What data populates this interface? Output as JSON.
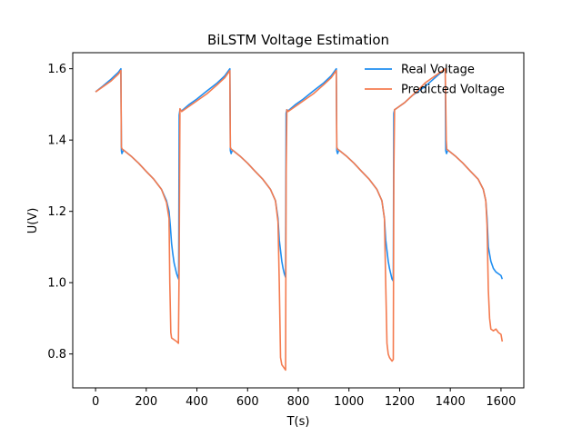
{
  "chart_data": {
    "type": "line",
    "title": "BiLSTM Voltage Estimation",
    "xlabel": "T(s)",
    "ylabel": "U(V)",
    "xlim": [
      -90,
      1690
    ],
    "ylim": [
      0.705,
      1.645
    ],
    "xticks": [
      0,
      200,
      400,
      600,
      800,
      1000,
      1200,
      1400,
      1600
    ],
    "xtick_labels": [
      "0",
      "200",
      "400",
      "600",
      "800",
      "1000",
      "1200",
      "1400",
      "1600"
    ],
    "yticks": [
      0.8,
      1.0,
      1.2,
      1.4,
      1.6
    ],
    "ytick_labels": [
      "0.8",
      "1.0",
      "1.2",
      "1.4",
      "1.6"
    ],
    "grid": false,
    "legend": "top-right",
    "series": [
      {
        "name": "Real Voltage",
        "color": "#1f8ef1",
        "points": [
          [
            0,
            1.535
          ],
          [
            30,
            1.552
          ],
          [
            60,
            1.57
          ],
          [
            90,
            1.59
          ],
          [
            100,
            1.6
          ],
          [
            102,
            1.37
          ],
          [
            104,
            1.362
          ],
          [
            110,
            1.372
          ],
          [
            140,
            1.355
          ],
          [
            170,
            1.335
          ],
          [
            200,
            1.312
          ],
          [
            230,
            1.29
          ],
          [
            260,
            1.262
          ],
          [
            280,
            1.23
          ],
          [
            290,
            1.2
          ],
          [
            295,
            1.16
          ],
          [
            300,
            1.11
          ],
          [
            305,
            1.08
          ],
          [
            310,
            1.055
          ],
          [
            315,
            1.04
          ],
          [
            320,
            1.025
          ],
          [
            325,
            1.015
          ],
          [
            328,
            1.01
          ],
          [
            330,
            1.47
          ],
          [
            333,
            1.485
          ],
          [
            340,
            1.482
          ],
          [
            370,
            1.5
          ],
          [
            400,
            1.515
          ],
          [
            440,
            1.538
          ],
          [
            480,
            1.56
          ],
          [
            510,
            1.58
          ],
          [
            530,
            1.6
          ],
          [
            532,
            1.37
          ],
          [
            535,
            1.362
          ],
          [
            540,
            1.372
          ],
          [
            570,
            1.355
          ],
          [
            600,
            1.335
          ],
          [
            630,
            1.312
          ],
          [
            660,
            1.29
          ],
          [
            690,
            1.262
          ],
          [
            710,
            1.23
          ],
          [
            720,
            1.18
          ],
          [
            725,
            1.12
          ],
          [
            730,
            1.09
          ],
          [
            735,
            1.06
          ],
          [
            740,
            1.04
          ],
          [
            745,
            1.025
          ],
          [
            750,
            1.015
          ],
          [
            752,
            1.475
          ],
          [
            755,
            1.485
          ],
          [
            760,
            1.482
          ],
          [
            790,
            1.5
          ],
          [
            820,
            1.515
          ],
          [
            860,
            1.538
          ],
          [
            900,
            1.56
          ],
          [
            930,
            1.58
          ],
          [
            950,
            1.6
          ],
          [
            952,
            1.37
          ],
          [
            955,
            1.362
          ],
          [
            960,
            1.372
          ],
          [
            990,
            1.355
          ],
          [
            1020,
            1.335
          ],
          [
            1050,
            1.312
          ],
          [
            1080,
            1.29
          ],
          [
            1110,
            1.262
          ],
          [
            1130,
            1.23
          ],
          [
            1140,
            1.18
          ],
          [
            1145,
            1.12
          ],
          [
            1150,
            1.09
          ],
          [
            1155,
            1.06
          ],
          [
            1160,
            1.04
          ],
          [
            1165,
            1.025
          ],
          [
            1170,
            1.01
          ],
          [
            1175,
            1.005
          ],
          [
            1177,
            1.475
          ],
          [
            1180,
            1.485
          ],
          [
            1190,
            1.49
          ],
          [
            1220,
            1.505
          ],
          [
            1250,
            1.525
          ],
          [
            1280,
            1.54
          ],
          [
            1300,
            1.55
          ],
          [
            1380,
            1.6
          ],
          [
            1382,
            1.37
          ],
          [
            1385,
            1.362
          ],
          [
            1390,
            1.372
          ],
          [
            1420,
            1.355
          ],
          [
            1450,
            1.335
          ],
          [
            1480,
            1.312
          ],
          [
            1510,
            1.29
          ],
          [
            1530,
            1.262
          ],
          [
            1540,
            1.23
          ],
          [
            1545,
            1.18
          ],
          [
            1550,
            1.1
          ],
          [
            1560,
            1.06
          ],
          [
            1570,
            1.04
          ],
          [
            1580,
            1.03
          ],
          [
            1590,
            1.025
          ],
          [
            1600,
            1.02
          ],
          [
            1605,
            1.01
          ]
        ]
      },
      {
        "name": "Predicted Voltage",
        "color": "#f47b4f",
        "points": [
          [
            0,
            1.535
          ],
          [
            30,
            1.55
          ],
          [
            60,
            1.565
          ],
          [
            90,
            1.585
          ],
          [
            100,
            1.595
          ],
          [
            102,
            1.38
          ],
          [
            105,
            1.375
          ],
          [
            110,
            1.372
          ],
          [
            140,
            1.355
          ],
          [
            170,
            1.335
          ],
          [
            200,
            1.312
          ],
          [
            230,
            1.29
          ],
          [
            260,
            1.262
          ],
          [
            280,
            1.225
          ],
          [
            290,
            1.18
          ],
          [
            293,
            1.0
          ],
          [
            297,
            0.86
          ],
          [
            300,
            0.845
          ],
          [
            310,
            0.84
          ],
          [
            320,
            0.835
          ],
          [
            327,
            0.83
          ],
          [
            330,
            1.05
          ],
          [
            333,
            1.488
          ],
          [
            340,
            1.48
          ],
          [
            370,
            1.495
          ],
          [
            400,
            1.51
          ],
          [
            440,
            1.53
          ],
          [
            480,
            1.555
          ],
          [
            510,
            1.575
          ],
          [
            530,
            1.595
          ],
          [
            532,
            1.38
          ],
          [
            535,
            1.375
          ],
          [
            540,
            1.372
          ],
          [
            570,
            1.355
          ],
          [
            600,
            1.335
          ],
          [
            630,
            1.312
          ],
          [
            660,
            1.29
          ],
          [
            690,
            1.262
          ],
          [
            710,
            1.23
          ],
          [
            720,
            1.17
          ],
          [
            725,
            1.0
          ],
          [
            730,
            0.79
          ],
          [
            735,
            0.77
          ],
          [
            740,
            0.765
          ],
          [
            745,
            0.76
          ],
          [
            750,
            0.755
          ],
          [
            752,
            1.3
          ],
          [
            755,
            1.485
          ],
          [
            760,
            1.48
          ],
          [
            790,
            1.495
          ],
          [
            820,
            1.51
          ],
          [
            860,
            1.53
          ],
          [
            900,
            1.555
          ],
          [
            930,
            1.575
          ],
          [
            950,
            1.595
          ],
          [
            952,
            1.38
          ],
          [
            955,
            1.375
          ],
          [
            960,
            1.372
          ],
          [
            990,
            1.355
          ],
          [
            1020,
            1.335
          ],
          [
            1050,
            1.312
          ],
          [
            1080,
            1.29
          ],
          [
            1110,
            1.262
          ],
          [
            1130,
            1.23
          ],
          [
            1140,
            1.18
          ],
          [
            1145,
            1.0
          ],
          [
            1150,
            0.83
          ],
          [
            1155,
            0.8
          ],
          [
            1160,
            0.79
          ],
          [
            1165,
            0.785
          ],
          [
            1170,
            0.78
          ],
          [
            1175,
            0.785
          ],
          [
            1177,
            1.3
          ],
          [
            1180,
            1.485
          ],
          [
            1190,
            1.49
          ],
          [
            1220,
            1.505
          ],
          [
            1250,
            1.525
          ],
          [
            1280,
            1.545
          ],
          [
            1300,
            1.56
          ],
          [
            1380,
            1.6
          ],
          [
            1382,
            1.5
          ],
          [
            1384,
            1.4
          ],
          [
            1386,
            1.375
          ],
          [
            1390,
            1.372
          ],
          [
            1420,
            1.355
          ],
          [
            1450,
            1.335
          ],
          [
            1480,
            1.312
          ],
          [
            1510,
            1.29
          ],
          [
            1530,
            1.262
          ],
          [
            1540,
            1.23
          ],
          [
            1545,
            1.16
          ],
          [
            1550,
            0.98
          ],
          [
            1555,
            0.9
          ],
          [
            1560,
            0.87
          ],
          [
            1570,
            0.865
          ],
          [
            1580,
            0.87
          ],
          [
            1590,
            0.86
          ],
          [
            1600,
            0.855
          ],
          [
            1605,
            0.835
          ]
        ]
      }
    ]
  }
}
